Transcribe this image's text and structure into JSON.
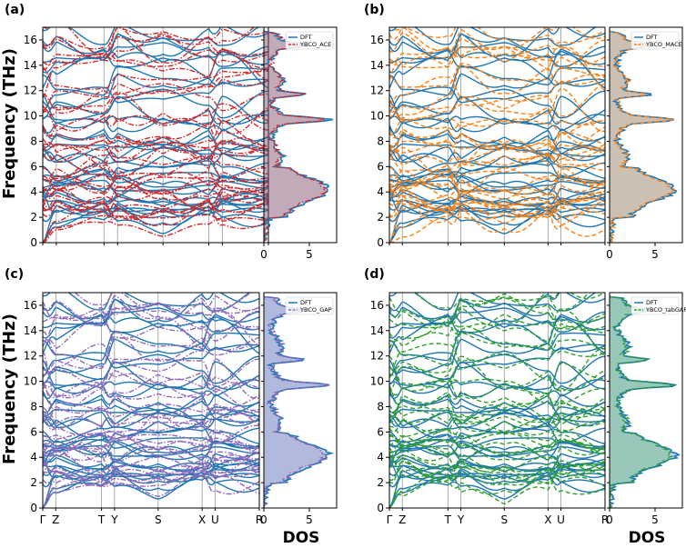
{
  "figure": {
    "ylabel": "Frequency (THz)",
    "dos_label": "DOS",
    "path_labels": [
      "Γ",
      "Z",
      "T",
      "Y",
      "S",
      "X",
      "U",
      "R"
    ],
    "path_positions": [
      0,
      0.42,
      1.9,
      2.32,
      3.73,
      5.15,
      5.57,
      7.0
    ],
    "dft_color": "#1f77b4",
    "dft_legend": "DFT"
  },
  "chart_data": [
    {
      "type": "line",
      "panel": "(a)",
      "title": "",
      "xlabel": "",
      "ylabel": "Frequency (THz)",
      "ylim": [
        0,
        17
      ],
      "yticks": [
        0,
        2,
        4,
        6,
        8,
        10,
        12,
        14,
        16
      ],
      "dos_xlim": [
        0,
        8
      ],
      "dos_xticks": [
        0,
        5
      ],
      "model": "YBCO_ACE",
      "model_color": "#d62728",
      "model_linestyle": "dashdot",
      "series": [
        {
          "name": "DFT",
          "max_frequency_thz": 16.5
        },
        {
          "name": "YBCO_ACE",
          "max_frequency_thz": 16.7
        }
      ]
    },
    {
      "type": "line",
      "panel": "(b)",
      "title": "",
      "xlabel": "",
      "ylabel": "",
      "ylim": [
        0,
        17
      ],
      "yticks": [
        0,
        2,
        4,
        6,
        8,
        10,
        12,
        14,
        16
      ],
      "dos_xlim": [
        0,
        8
      ],
      "dos_xticks": [
        0,
        5
      ],
      "model": "YBCO_MACE",
      "model_color": "#ff7f0e",
      "model_linestyle": "dashed",
      "series": [
        {
          "name": "DFT",
          "max_frequency_thz": 16.5
        },
        {
          "name": "YBCO_MACE",
          "max_frequency_thz": 16.0
        }
      ]
    },
    {
      "type": "line",
      "panel": "(c)",
      "title": "",
      "xlabel": "",
      "ylabel": "Frequency (THz)",
      "ylim": [
        0,
        17
      ],
      "yticks": [
        0,
        2,
        4,
        6,
        8,
        10,
        12,
        14,
        16
      ],
      "dos_xlim": [
        0,
        8
      ],
      "dos_xticks": [
        0,
        5
      ],
      "model": "YBCO_GAP",
      "model_color": "#9467bd",
      "model_linestyle": "dashdot",
      "series": [
        {
          "name": "DFT",
          "max_frequency_thz": 16.5
        },
        {
          "name": "YBCO_GAP",
          "max_frequency_thz": 15.9
        }
      ]
    },
    {
      "type": "line",
      "panel": "(d)",
      "title": "",
      "xlabel": "",
      "ylabel": "",
      "ylim": [
        0,
        17
      ],
      "yticks": [
        0,
        2,
        4,
        6,
        8,
        10,
        12,
        14,
        16
      ],
      "dos_xlim": [
        0,
        8
      ],
      "dos_xticks": [
        0,
        5
      ],
      "model": "YBCO_tabGAP",
      "model_color": "#2ca02c",
      "model_linestyle": "dashed",
      "series": [
        {
          "name": "DFT",
          "max_frequency_thz": 16.5
        },
        {
          "name": "YBCO_tabGAP",
          "max_frequency_thz": 15.7
        }
      ]
    }
  ]
}
